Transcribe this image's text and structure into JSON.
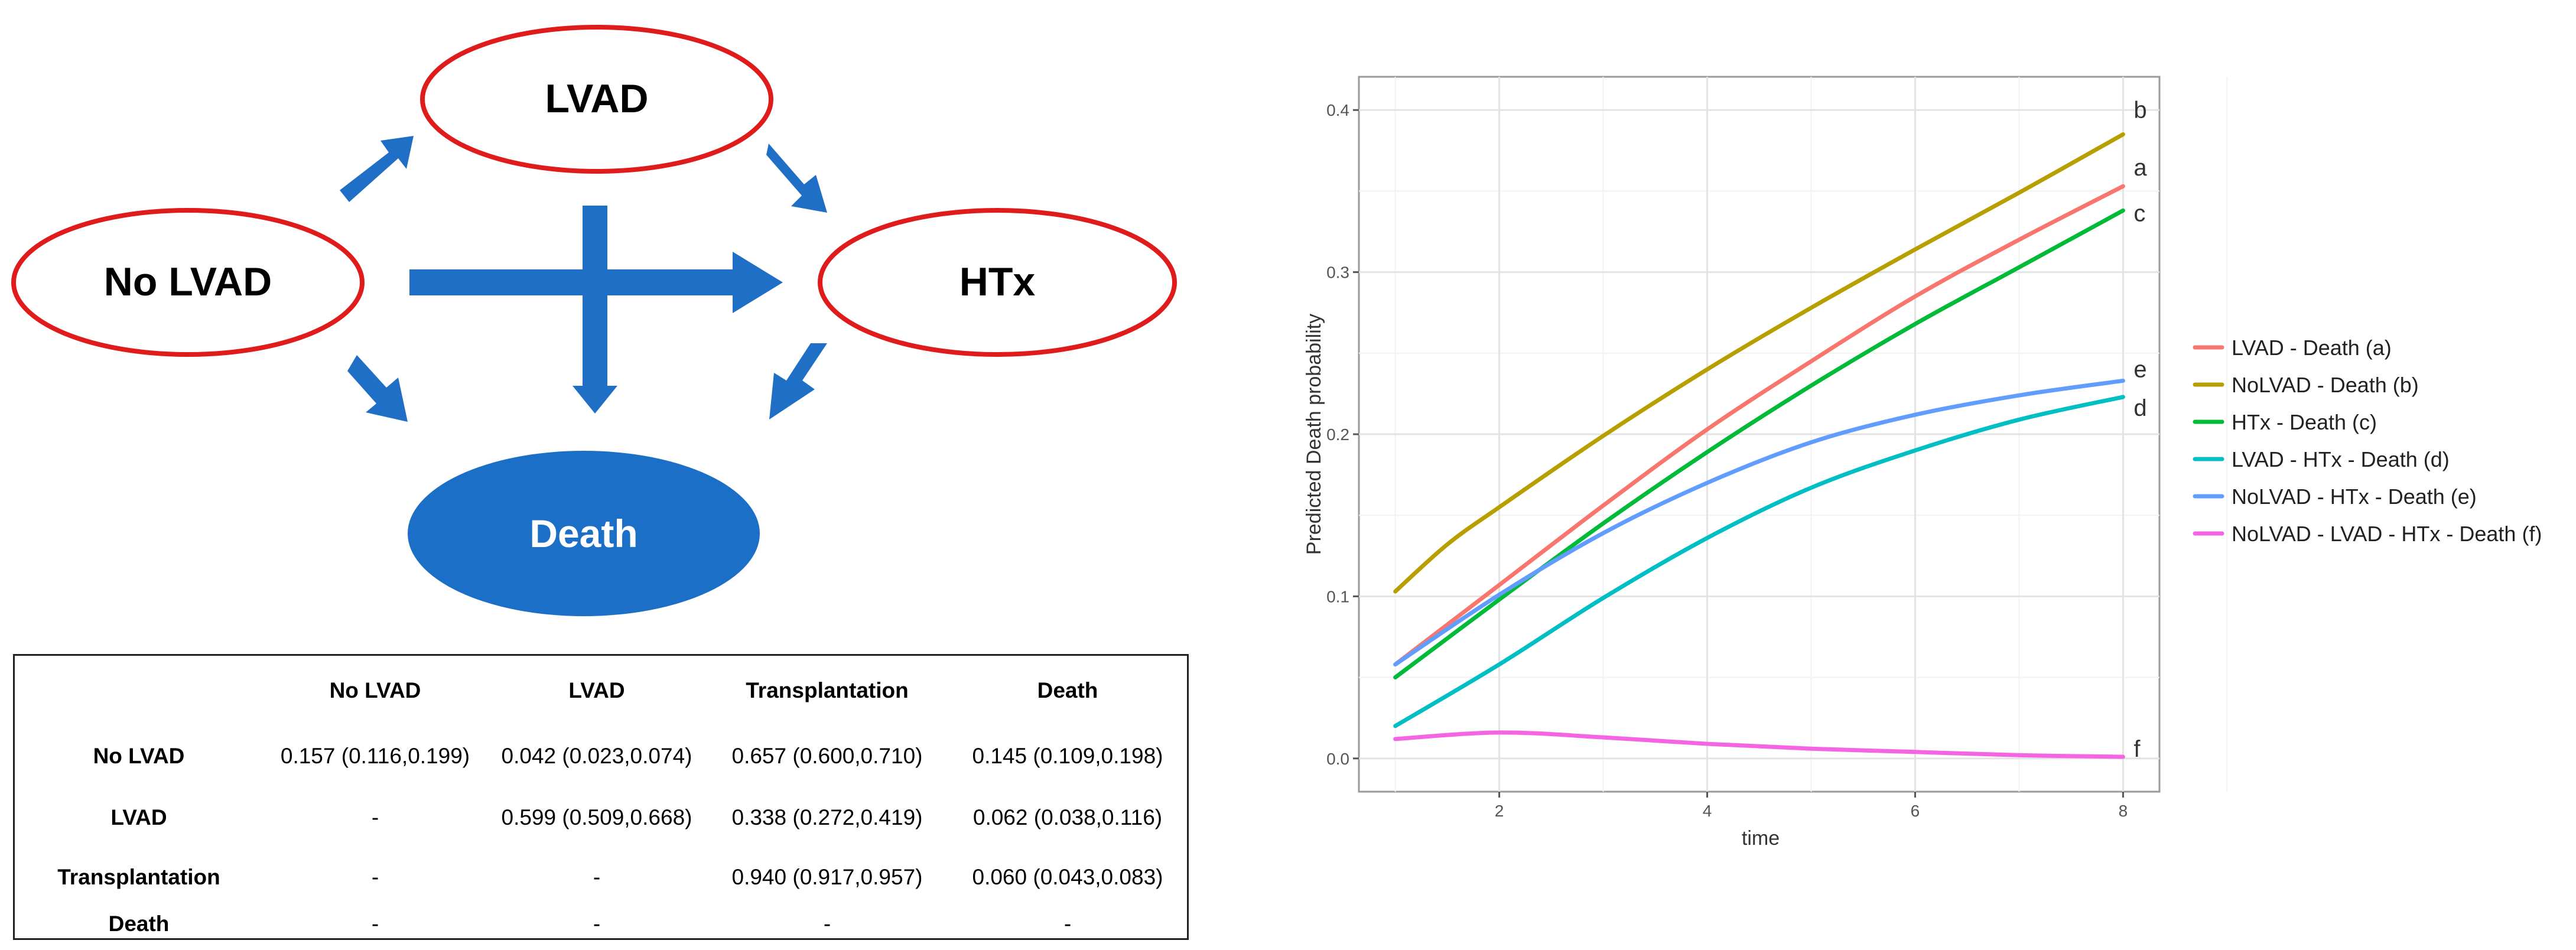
{
  "diagram": {
    "nodes": {
      "lvad": "LVAD",
      "no_lvad": "No LVAD",
      "htx": "HTx",
      "death": "Death"
    },
    "colors": {
      "ring": "#e01b1b",
      "arrow": "#1f6fc6",
      "death_fill": "#1c6fc7"
    }
  },
  "table": {
    "headers": [
      "",
      "No LVAD",
      "LVAD",
      "Transplantation",
      "Death"
    ],
    "rows": [
      [
        "No LVAD",
        "0.157 (0.116,0.199)",
        "0.042 (0.023,0.074)",
        "0.657 (0.600,0.710)",
        "0.145 (0.109,0.198)"
      ],
      [
        "LVAD",
        "-",
        "0.599 (0.509,0.668)",
        "0.338 (0.272,0.419)",
        "0.062 (0.038,0.116)"
      ],
      [
        "Transplantation",
        "-",
        "-",
        "0.940 (0.917,0.957)",
        "0.060 (0.043,0.083)"
      ],
      [
        "Death",
        "-",
        "-",
        "-",
        "-"
      ]
    ]
  },
  "chart_data": {
    "type": "line",
    "xlabel": "time",
    "ylabel": "Predicted Death probability",
    "xlim": [
      1,
      8
    ],
    "ylim": [
      0,
      0.4
    ],
    "x_ticks": [
      2,
      4,
      6,
      8
    ],
    "y_ticks": [
      "0.0",
      "0.1",
      "0.2",
      "0.3",
      "0.4"
    ],
    "grid": true,
    "legend_position": "right",
    "series": [
      {
        "name": "LVAD - Death (a)",
        "end_label": "a",
        "color": "#f8766d",
        "points": [
          [
            1,
            0.058
          ],
          [
            2,
            0.107
          ],
          [
            3,
            0.156
          ],
          [
            4,
            0.203
          ],
          [
            5,
            0.245
          ],
          [
            6,
            0.285
          ],
          [
            7,
            0.32
          ],
          [
            8,
            0.353
          ]
        ]
      },
      {
        "name": "NoLVAD - Death (b)",
        "end_label": "b",
        "color": "#b79f00",
        "points": [
          [
            1,
            0.103
          ],
          [
            1.5,
            0.132
          ],
          [
            2,
            0.155
          ],
          [
            3,
            0.199
          ],
          [
            4,
            0.24
          ],
          [
            5,
            0.278
          ],
          [
            6,
            0.314
          ],
          [
            7,
            0.349
          ],
          [
            8,
            0.385
          ]
        ]
      },
      {
        "name": "HTx - Death (c)",
        "end_label": "c",
        "color": "#00ba38",
        "points": [
          [
            1,
            0.05
          ],
          [
            2,
            0.098
          ],
          [
            3,
            0.145
          ],
          [
            4,
            0.189
          ],
          [
            5,
            0.23
          ],
          [
            6,
            0.268
          ],
          [
            7,
            0.303
          ],
          [
            8,
            0.338
          ]
        ]
      },
      {
        "name": "LVAD - HTx - Death (d)",
        "end_label": "d",
        "color": "#00bfc4",
        "points": [
          [
            1,
            0.02
          ],
          [
            2,
            0.058
          ],
          [
            3,
            0.099
          ],
          [
            4,
            0.136
          ],
          [
            5,
            0.167
          ],
          [
            6,
            0.19
          ],
          [
            7,
            0.209
          ],
          [
            8,
            0.223
          ]
        ]
      },
      {
        "name": "NoLVAD - HTx - Death (e)",
        "end_label": "e",
        "color": "#619cff",
        "points": [
          [
            1,
            0.058
          ],
          [
            2,
            0.101
          ],
          [
            3,
            0.139
          ],
          [
            4,
            0.17
          ],
          [
            5,
            0.195
          ],
          [
            6,
            0.212
          ],
          [
            7,
            0.224
          ],
          [
            8,
            0.233
          ]
        ]
      },
      {
        "name": "NoLVAD - LVAD - HTx - Death (f)",
        "end_label": "f",
        "color": "#f564e3",
        "points": [
          [
            1,
            0.012
          ],
          [
            2,
            0.016
          ],
          [
            3,
            0.013
          ],
          [
            4,
            0.009
          ],
          [
            5,
            0.006
          ],
          [
            6,
            0.004
          ],
          [
            7,
            0.002
          ],
          [
            8,
            0.001
          ]
        ]
      }
    ]
  }
}
